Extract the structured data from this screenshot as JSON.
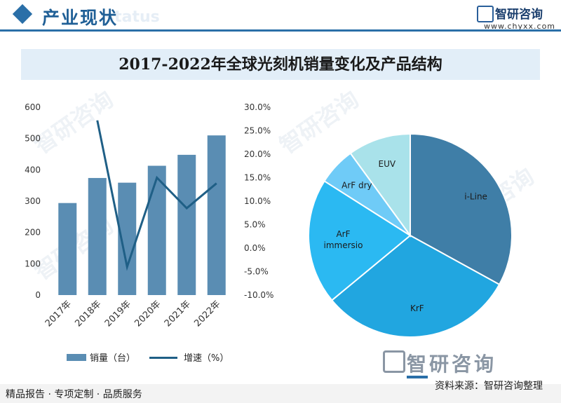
{
  "header": {
    "title": "产业现状",
    "bg_text": "status",
    "logo_name": "智研咨询",
    "logo_url": "www.chyxx.com"
  },
  "colors": {
    "bar": "#5a8db3",
    "line": "#1f5f86",
    "i_line": "#3f7ea7",
    "krf": "#21a6e0",
    "arf_immersion": "#2bb9f2",
    "arf_dry": "#6fcbf7",
    "euv": "#a9e2ea"
  },
  "watermark": "智研咨询",
  "chart_data": [
    {
      "type": "bar",
      "title": "2017-2022年全球光刻机销量变化及产品结构",
      "categories": [
        "2017年",
        "2018年",
        "2019年",
        "2020年",
        "2021年",
        "2022年"
      ],
      "series": [
        {
          "name": "销量（台）",
          "type": "bar",
          "axis": "left",
          "values": [
            294,
            374,
            359,
            413,
            448,
            510
          ]
        },
        {
          "name": "增速（%）",
          "type": "line",
          "axis": "right",
          "values": [
            null,
            27.2,
            -4.0,
            15.0,
            8.5,
            13.8
          ]
        }
      ],
      "y_left_ticks": [
        "600",
        "500",
        "400",
        "300",
        "200",
        "100",
        "0"
      ],
      "y_right_ticks": [
        "30.0%",
        "25.0%",
        "20.0%",
        "15.0%",
        "10.0%",
        "5.0%",
        "0.0%",
        "-5.0%",
        "-10.0%"
      ],
      "ylim_left": [
        0,
        600
      ],
      "ylim_right": [
        -10,
        30
      ],
      "legend_position": "bottom"
    },
    {
      "type": "pie",
      "labels": [
        "i-Line",
        "KrF",
        "ArF\nimmersio",
        "ArF dry",
        "EUV"
      ],
      "values": [
        33,
        31,
        20,
        6,
        10
      ]
    }
  ],
  "footer": {
    "left": "精品报告 · 专项定制 · 品质服务",
    "brand": "智研咨询",
    "source": "资料来源：智研咨询整理"
  }
}
